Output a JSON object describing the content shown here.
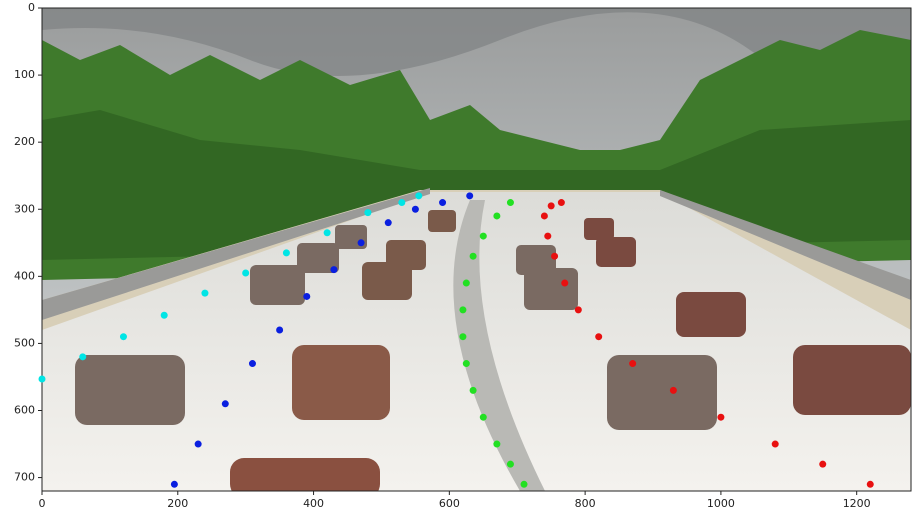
{
  "chart_data": {
    "type": "scatter",
    "xlim": [
      0,
      1280
    ],
    "ylim": [
      720,
      0
    ],
    "xticks": [
      0,
      200,
      400,
      600,
      800,
      1000,
      1200
    ],
    "yticks": [
      0,
      100,
      200,
      300,
      400,
      500,
      600,
      700
    ],
    "series": [
      {
        "color": "#00e5e5",
        "x": [
          0,
          60,
          120,
          180,
          240,
          300,
          360,
          420,
          480,
          530,
          555
        ],
        "values": [
          553,
          520,
          490,
          458,
          425,
          395,
          365,
          335,
          305,
          290,
          280
        ]
      },
      {
        "color": "#0a1fe0",
        "x": [
          195,
          230,
          270,
          310,
          350,
          390,
          430,
          470,
          510,
          550,
          590,
          630
        ],
        "values": [
          710,
          650,
          590,
          530,
          480,
          430,
          390,
          350,
          320,
          300,
          290,
          280
        ]
      },
      {
        "color": "#22e022",
        "x": [
          710,
          690,
          670,
          650,
          635,
          625,
          620,
          620,
          625,
          635,
          650,
          670,
          690
        ],
        "values": [
          710,
          680,
          650,
          610,
          570,
          530,
          490,
          450,
          410,
          370,
          340,
          310,
          290
        ]
      },
      {
        "color": "#e81010",
        "x": [
          1220,
          1150,
          1080,
          1000,
          930,
          870,
          820,
          790,
          770,
          755,
          745,
          740,
          750,
          765
        ],
        "values": [
          710,
          680,
          650,
          610,
          570,
          530,
          490,
          450,
          410,
          370,
          340,
          310,
          295,
          290
        ]
      }
    ]
  }
}
